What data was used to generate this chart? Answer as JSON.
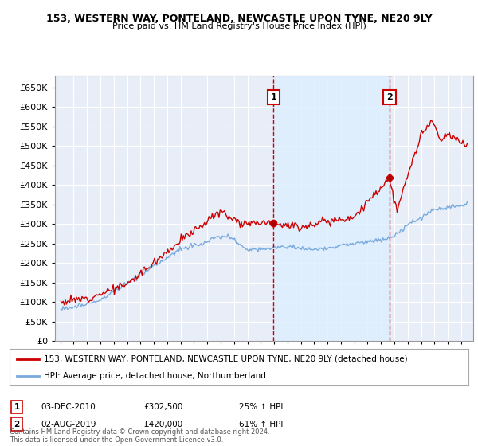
{
  "title": "153, WESTERN WAY, PONTELAND, NEWCASTLE UPON TYNE, NE20 9LY",
  "subtitle": "Price paid vs. HM Land Registry's House Price Index (HPI)",
  "legend_line1": "153, WESTERN WAY, PONTELAND, NEWCASTLE UPON TYNE, NE20 9LY (detached house)",
  "legend_line2": "HPI: Average price, detached house, Northumberland",
  "annotation1_date": "03-DEC-2010",
  "annotation1_price": "£302,500",
  "annotation1_pct": "25% ↑ HPI",
  "annotation2_date": "02-AUG-2019",
  "annotation2_price": "£420,000",
  "annotation2_pct": "61% ↑ HPI",
  "footer": "Contains HM Land Registry data © Crown copyright and database right 2024.\nThis data is licensed under the Open Government Licence v3.0.",
  "house_color": "#cc0000",
  "hpi_color": "#7aaadd",
  "vline_color": "#cc0000",
  "annotation_box_color": "#cc0000",
  "shade_color": "#ddeeff",
  "ylim": [
    0,
    680000
  ],
  "yticks": [
    0,
    50000,
    100000,
    150000,
    200000,
    250000,
    300000,
    350000,
    400000,
    450000,
    500000,
    550000,
    600000,
    650000
  ],
  "plot_background": "#e8eef8",
  "grid_color": "#ffffff"
}
